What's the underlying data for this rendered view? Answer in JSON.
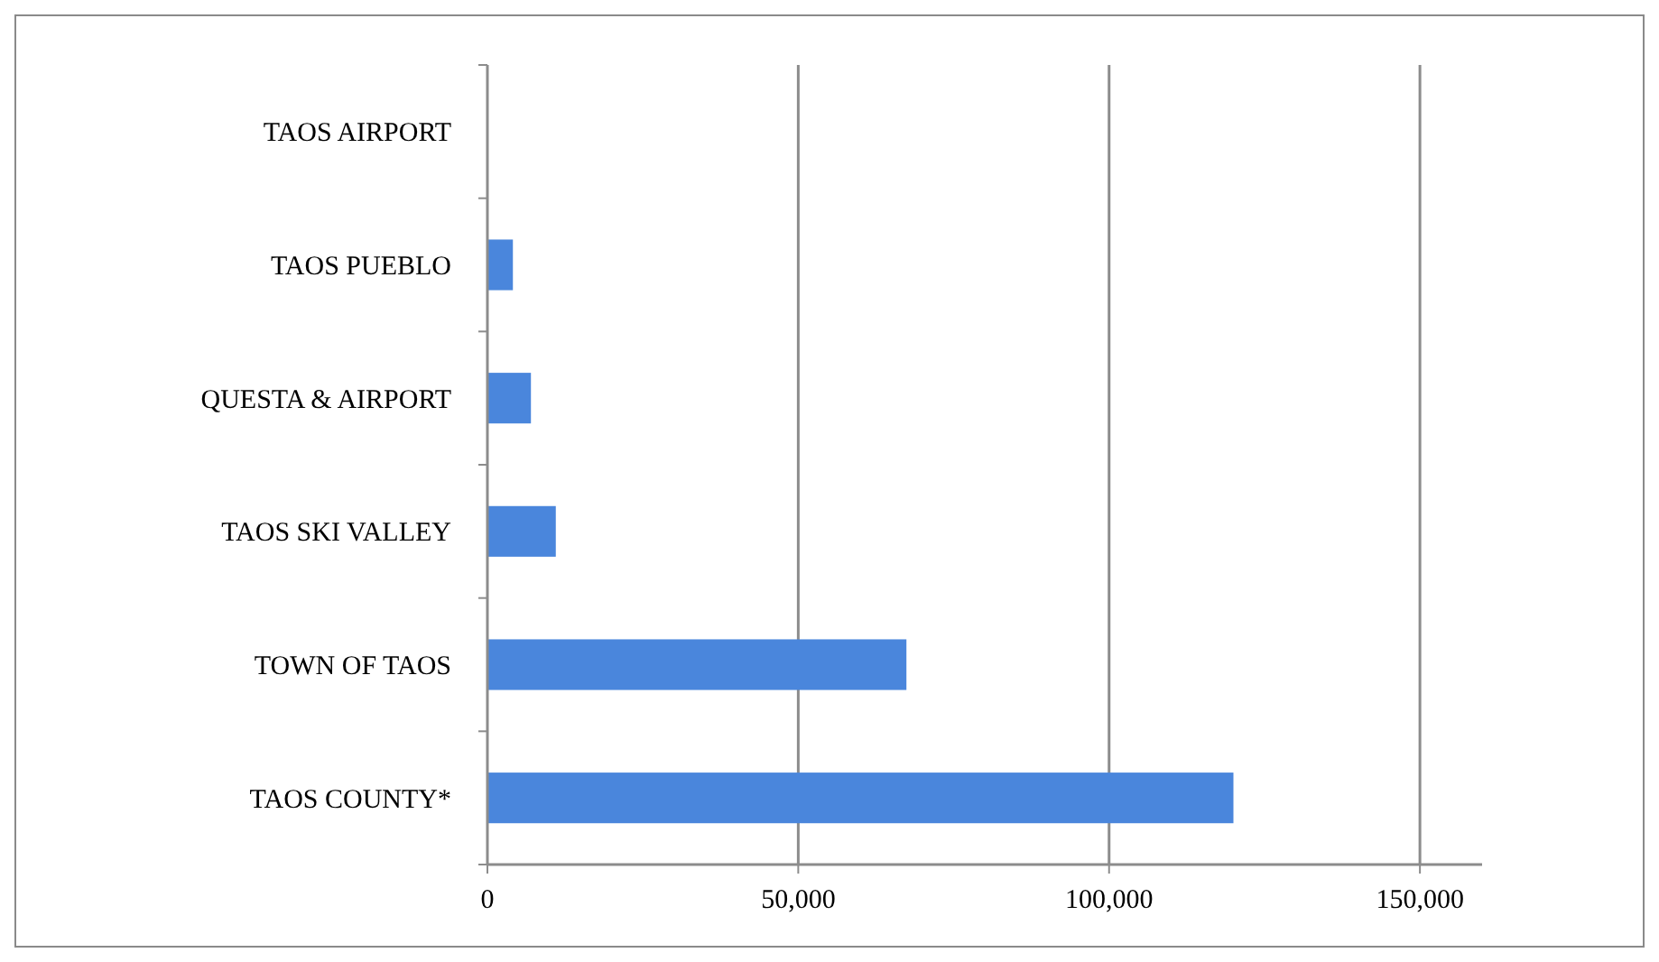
{
  "chart_data": {
    "type": "bar",
    "orientation": "horizontal",
    "categories": [
      "TAOS AIRPORT",
      "TAOS PUEBLO",
      "QUESTA & AIRPORT",
      "TAOS SKI VALLEY",
      "TOWN OF TAOS",
      "TAOS COUNTY*"
    ],
    "values": [
      null,
      4100,
      7000,
      11000,
      67400,
      120000
    ],
    "color": "#4a86dc",
    "xlim": [
      0,
      160000
    ],
    "xticks": [
      {
        "value": 0,
        "label": "0"
      },
      {
        "value": 50000,
        "label": "50,000"
      },
      {
        "value": 100000,
        "label": "100,000"
      },
      {
        "value": 150000,
        "label": "150,000"
      }
    ],
    "grid": "x"
  }
}
